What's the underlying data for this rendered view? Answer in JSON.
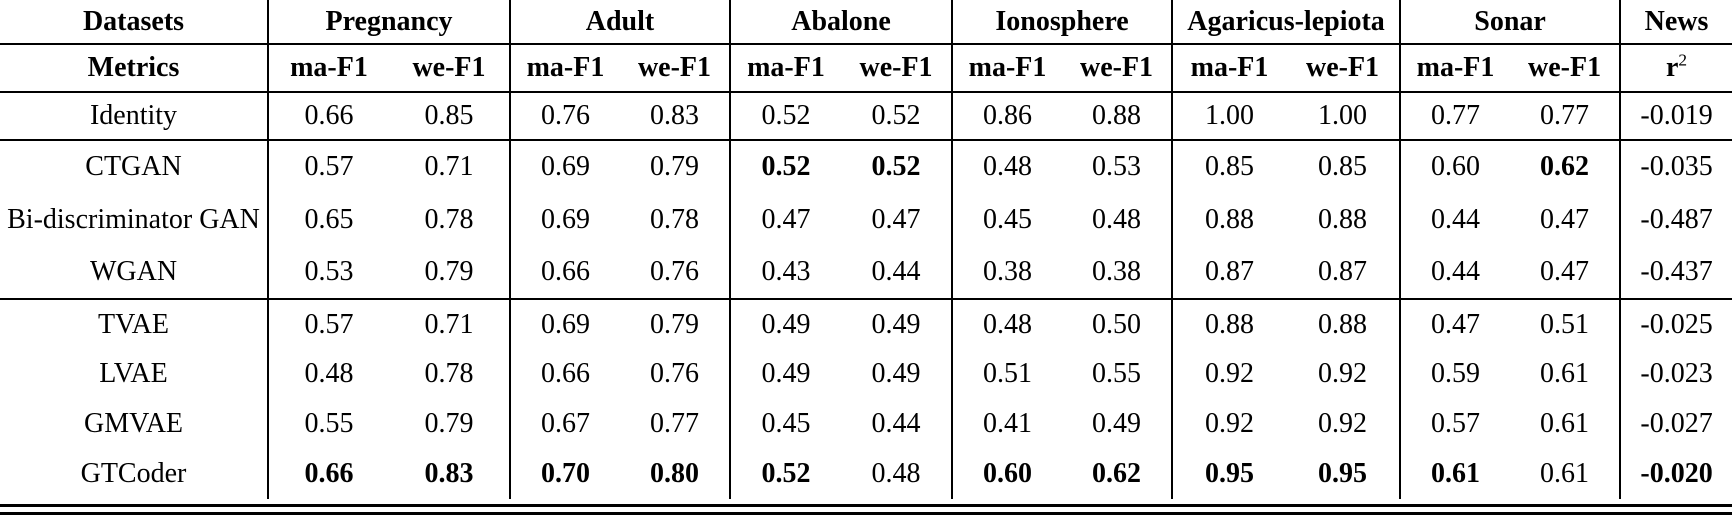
{
  "colors": {
    "text": "#000000",
    "background": "#ffffff",
    "rule": "#000000"
  },
  "table": {
    "header": {
      "datasets_label": "Datasets",
      "metrics_label": "Metrics",
      "groups": [
        "Pregnancy",
        "Adult",
        "Abalone",
        "Ionosphere",
        "Agaricus-lepiota",
        "Sonar"
      ],
      "metric_ma": "ma-F1",
      "metric_we": "we-F1",
      "news_label": "News",
      "news_metric_base": "r",
      "news_metric_sup": "2"
    },
    "rows": [
      {
        "label": "Identity",
        "values": [
          "0.66",
          "0.85",
          "0.76",
          "0.83",
          "0.52",
          "0.52",
          "0.86",
          "0.88",
          "1.00",
          "1.00",
          "0.77",
          "0.77",
          "-0.019"
        ],
        "bold": [
          false,
          false,
          false,
          false,
          false,
          false,
          false,
          false,
          false,
          false,
          false,
          false,
          false
        ],
        "rule_after": true
      },
      {
        "label": "CTGAN",
        "values": [
          "0.57",
          "0.71",
          "0.69",
          "0.79",
          "0.52",
          "0.52",
          "0.48",
          "0.53",
          "0.85",
          "0.85",
          "0.60",
          "0.62",
          "-0.035"
        ],
        "bold": [
          false,
          false,
          false,
          false,
          true,
          true,
          false,
          false,
          false,
          false,
          false,
          true,
          false
        ],
        "rule_after": false
      },
      {
        "label": "Bi-discriminator GAN",
        "values": [
          "0.65",
          "0.78",
          "0.69",
          "0.78",
          "0.47",
          "0.47",
          "0.45",
          "0.48",
          "0.88",
          "0.88",
          "0.44",
          "0.47",
          "-0.487"
        ],
        "bold": [
          false,
          false,
          false,
          false,
          false,
          false,
          false,
          false,
          false,
          false,
          false,
          false,
          false
        ],
        "rule_after": false
      },
      {
        "label": "WGAN",
        "values": [
          "0.53",
          "0.79",
          "0.66",
          "0.76",
          "0.43",
          "0.44",
          "0.38",
          "0.38",
          "0.87",
          "0.87",
          "0.44",
          "0.47",
          "-0.437"
        ],
        "bold": [
          false,
          false,
          false,
          false,
          false,
          false,
          false,
          false,
          false,
          false,
          false,
          false,
          false
        ],
        "rule_after": true
      },
      {
        "label": "TVAE",
        "values": [
          "0.57",
          "0.71",
          "0.69",
          "0.79",
          "0.49",
          "0.49",
          "0.48",
          "0.50",
          "0.88",
          "0.88",
          "0.47",
          "0.51",
          "-0.025"
        ],
        "bold": [
          false,
          false,
          false,
          false,
          false,
          false,
          false,
          false,
          false,
          false,
          false,
          false,
          false
        ],
        "rule_after": false
      },
      {
        "label": "LVAE",
        "values": [
          "0.48",
          "0.78",
          "0.66",
          "0.76",
          "0.49",
          "0.49",
          "0.51",
          "0.55",
          "0.92",
          "0.92",
          "0.59",
          "0.61",
          "-0.023"
        ],
        "bold": [
          false,
          false,
          false,
          false,
          false,
          false,
          false,
          false,
          false,
          false,
          false,
          false,
          false
        ],
        "rule_after": false
      },
      {
        "label": "GMVAE",
        "values": [
          "0.55",
          "0.79",
          "0.67",
          "0.77",
          "0.45",
          "0.44",
          "0.41",
          "0.49",
          "0.92",
          "0.92",
          "0.57",
          "0.61",
          "-0.027"
        ],
        "bold": [
          false,
          false,
          false,
          false,
          false,
          false,
          false,
          false,
          false,
          false,
          false,
          false,
          false
        ],
        "rule_after": false
      },
      {
        "label": "GTCoder",
        "values": [
          "0.66",
          "0.83",
          "0.70",
          "0.80",
          "0.52",
          "0.48",
          "0.60",
          "0.62",
          "0.95",
          "0.95",
          "0.61",
          "0.61",
          "-0.020"
        ],
        "bold": [
          true,
          true,
          true,
          true,
          true,
          false,
          true,
          true,
          true,
          true,
          true,
          false,
          true
        ],
        "rule_after": false
      }
    ]
  }
}
